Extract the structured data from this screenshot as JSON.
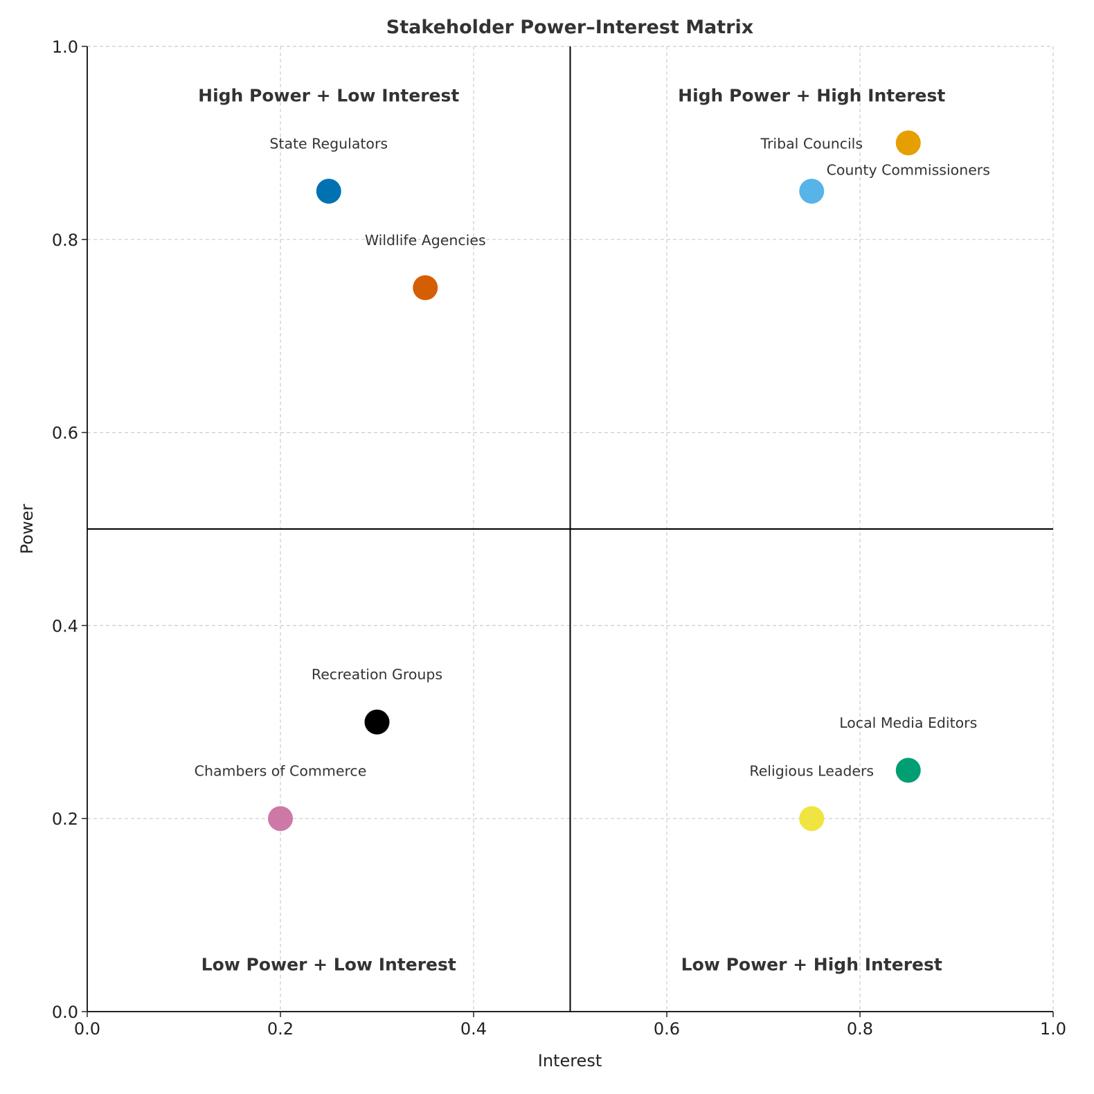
{
  "chart_data": {
    "type": "scatter",
    "title": "Stakeholder Power–Interest Matrix",
    "xlabel": "Interest",
    "ylabel": "Power",
    "xlim": [
      0,
      1
    ],
    "ylim": [
      0,
      1
    ],
    "grid": true,
    "xticks": [
      "0.0",
      "0.2",
      "0.4",
      "0.6",
      "0.8",
      "1.0"
    ],
    "yticks": [
      "0.0",
      "0.2",
      "0.4",
      "0.6",
      "0.8",
      "1.0"
    ],
    "dividers": {
      "x": 0.5,
      "y": 0.5
    },
    "quadrants": [
      {
        "label": "High Power + Low Interest",
        "x": 0.25,
        "y": 0.95
      },
      {
        "label": "High Power + High Interest",
        "x": 0.75,
        "y": 0.95
      },
      {
        "label": "Low Power + Low Interest",
        "x": 0.25,
        "y": 0.05
      },
      {
        "label": "Low Power + High Interest",
        "x": 0.75,
        "y": 0.05
      }
    ],
    "points": [
      {
        "name": "State Regulators",
        "x": 0.25,
        "y": 0.85,
        "color": "#0072B2"
      },
      {
        "name": "Wildlife Agencies",
        "x": 0.35,
        "y": 0.75,
        "color": "#D55E00"
      },
      {
        "name": "Tribal Councils",
        "x": 0.75,
        "y": 0.85,
        "color": "#56B4E9"
      },
      {
        "name": "County Commissioners",
        "x": 0.85,
        "y": 0.9,
        "color": "#E69F00"
      },
      {
        "name": "Recreation Groups",
        "x": 0.3,
        "y": 0.3,
        "color": "#000000"
      },
      {
        "name": "Chambers of Commerce",
        "x": 0.2,
        "y": 0.2,
        "color": "#CC79A7"
      },
      {
        "name": "Local Media Editors",
        "x": 0.85,
        "y": 0.25,
        "color": "#009E73"
      },
      {
        "name": "Religious Leaders",
        "x": 0.75,
        "y": 0.2,
        "color": "#F0E442"
      }
    ]
  }
}
